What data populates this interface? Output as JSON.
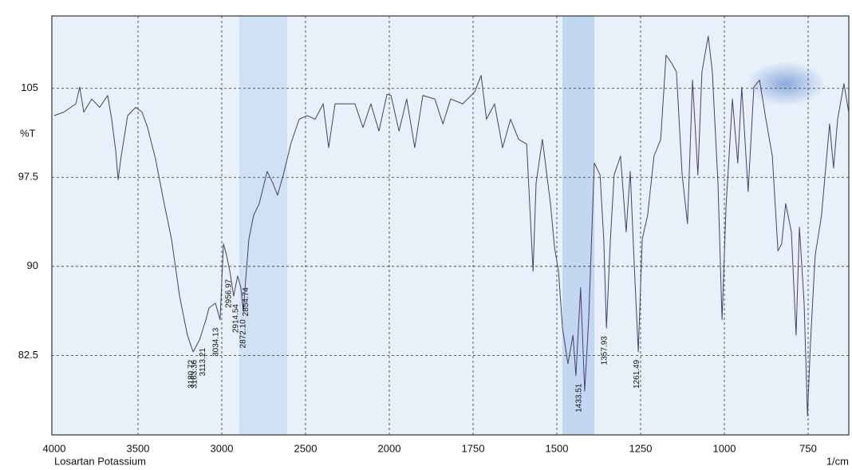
{
  "chart_data": {
    "type": "line",
    "caption": "Losartan Potassium",
    "x_label": "1/cm",
    "y_label": "%T",
    "color": "#4b3d6e",
    "grid": true,
    "xlim": [
      4000,
      630
    ],
    "ylim": [
      75.8,
      111.1
    ],
    "xticks": [
      4000,
      3500,
      3000,
      2500,
      2000,
      1750,
      1500,
      1250,
      1000,
      750
    ],
    "yticks": [
      82.5,
      90,
      97.5,
      105
    ],
    "x": [
      4000,
      3943,
      3871,
      3848,
      3824,
      3776,
      3729,
      3681,
      3657,
      3633,
      3619,
      3600,
      3562,
      3514,
      3476,
      3443,
      3395,
      3348,
      3300,
      3252,
      3205,
      3171,
      3133,
      3095,
      3076,
      3038,
      3010,
      2990,
      2971,
      2952,
      2929,
      2905,
      2886,
      2871,
      2857,
      2838,
      2810,
      2776,
      2729,
      2695,
      2667,
      2633,
      2586,
      2538,
      2490,
      2443,
      2395,
      2362,
      2324,
      2252,
      2205,
      2157,
      2110,
      2062,
      2014,
      1995,
      1971,
      1948,
      1924,
      1900,
      1864,
      1840,
      1817,
      1781,
      1745,
      1726,
      1710,
      1686,
      1662,
      1638,
      1614,
      1590,
      1571,
      1562,
      1543,
      1519,
      1507,
      1495,
      1483,
      1467,
      1452,
      1443,
      1429,
      1417,
      1405,
      1388,
      1371,
      1360,
      1352,
      1340,
      1329,
      1310,
      1293,
      1281,
      1269,
      1257,
      1245,
      1229,
      1210,
      1190,
      1174,
      1157,
      1143,
      1126,
      1110,
      1095,
      1079,
      1067,
      1048,
      1036,
      1019,
      1007,
      995,
      976,
      960,
      948,
      929,
      912,
      895,
      876,
      857,
      840,
      829,
      817,
      800,
      786,
      776,
      762,
      752,
      743,
      729,
      710,
      686,
      674,
      662,
      643,
      629
    ],
    "y": [
      102.7,
      103.0,
      103.7,
      105.1,
      103.0,
      104.1,
      103.4,
      104.4,
      102.4,
      99.7,
      97.3,
      99.3,
      102.7,
      103.4,
      103.0,
      101.7,
      99.0,
      95.6,
      92.3,
      87.5,
      84.2,
      82.8,
      83.8,
      85.5,
      86.5,
      86.9,
      85.5,
      91.9,
      90.9,
      89.6,
      87.5,
      89.2,
      88.2,
      86.2,
      88.9,
      92.3,
      94.3,
      95.3,
      98.0,
      97.0,
      96.0,
      97.7,
      100.4,
      102.4,
      102.7,
      102.4,
      103.7,
      100.0,
      103.7,
      103.7,
      103.7,
      101.7,
      103.7,
      101.4,
      104.5,
      104.4,
      101.4,
      104.1,
      100.0,
      104.4,
      104.1,
      102.0,
      104.1,
      103.7,
      104.7,
      106.1,
      102.4,
      103.7,
      100.0,
      102.4,
      100.7,
      100.3,
      89.6,
      97.0,
      100.7,
      95.3,
      91.6,
      89.6,
      84.8,
      81.8,
      84.2,
      80.8,
      88.2,
      79.5,
      85.5,
      98.7,
      97.7,
      92.3,
      84.8,
      92.3,
      97.7,
      99.3,
      92.9,
      98.0,
      90.2,
      82.8,
      92.3,
      94.3,
      99.3,
      100.7,
      107.8,
      107.1,
      106.4,
      97.7,
      93.6,
      105.7,
      97.7,
      106.4,
      109.4,
      106.4,
      97.0,
      85.5,
      95.0,
      104.1,
      98.7,
      105.1,
      96.3,
      105.1,
      105.7,
      102.4,
      99.3,
      91.3,
      91.9,
      95.3,
      92.9,
      84.2,
      93.3,
      86.9,
      77.4,
      83.5,
      90.9,
      94.3,
      102.0,
      98.3,
      102.4,
      105.4,
      103.0
    ],
    "annotations": [
      {
        "value": 3180.72,
        "label": "3180.72"
      },
      {
        "value": 3163.36,
        "label": "3163.36"
      },
      {
        "value": 3113.21,
        "label": "3113.21"
      },
      {
        "value": 3034.13,
        "label": "3034.13"
      },
      {
        "value": 2956.97,
        "label": "2956.97"
      },
      {
        "value": 2914.54,
        "label": "2914.54"
      },
      {
        "value": 2872.1,
        "label": "2872.10"
      },
      {
        "value": 2854.74,
        "label": "2854.74"
      },
      {
        "value": 1433.51,
        "label": "1433.51"
      },
      {
        "value": 1357.93,
        "label": "1357.93"
      },
      {
        "value": 1261.49,
        "label": "1261.49"
      }
    ]
  }
}
